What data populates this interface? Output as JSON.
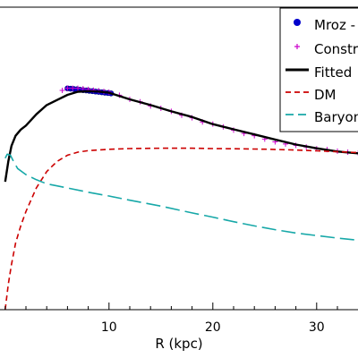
{
  "chart_data": {
    "type": "line",
    "xlabel": "R (kpc)",
    "ylabel": "",
    "xlim": [
      0,
      36
    ],
    "ylim": [
      0,
      290
    ],
    "x_ticks": [
      10,
      20,
      30
    ],
    "grid": false,
    "legend_placement": "top-right",
    "legend_entries": [
      {
        "label": "Mroz -",
        "marker": "circle",
        "color": "#0000cc"
      },
      {
        "label": "Constr",
        "marker": "plus",
        "color": "#cc00cc"
      },
      {
        "label": "Fitted",
        "marker": "line-solid",
        "color": "#000000"
      },
      {
        "label": "DM",
        "marker": "line-dashed",
        "color": "#cc0000"
      },
      {
        "label": "Baryon",
        "marker": "line-dashed",
        "color": "#17a8a8"
      }
    ],
    "series": [
      {
        "name": "Mroz -",
        "kind": "points",
        "color": "#0000cc",
        "x": [
          6.0,
          6.3,
          6.6,
          6.9,
          7.2,
          7.5,
          7.8,
          8.1,
          8.4,
          8.7,
          9.0,
          9.3,
          9.6,
          9.9,
          10.2
        ],
        "y": [
          216.3,
          216.0,
          215.7,
          215.4,
          215.0,
          214.6,
          214.3,
          213.9,
          213.6,
          213.2,
          212.9,
          212.5,
          212.1,
          211.8,
          211.4
        ]
      },
      {
        "name": "Constr",
        "kind": "plus",
        "color": "#cc00cc",
        "x": [
          5.5,
          6.0,
          6.5,
          7.0,
          7.5,
          8.0,
          8.5,
          9.0,
          9.5,
          10.0,
          11.0,
          12.0,
          13.0,
          14.0,
          15.0,
          16.0,
          17.0,
          18.0,
          19.0,
          20.0,
          21.0,
          22.0,
          23.0,
          24.0,
          25.0,
          26.0,
          27.0,
          28.0,
          29.0,
          30.0,
          31.0,
          32.0,
          33.0,
          34.0,
          35.0,
          36.0
        ],
        "y": [
          214.3,
          216.5,
          216.4,
          216.4,
          216.0,
          215.3,
          214.6,
          214.0,
          213.4,
          212.6,
          209.7,
          205.6,
          203.2,
          199.2,
          196.8,
          193.9,
          190.1,
          187.6,
          183.5,
          181.4,
          178.7,
          175.5,
          172.2,
          170.1,
          166.8,
          164.0,
          162.0,
          160.7,
          159.0,
          157.3,
          156.5,
          155.0,
          154.0,
          153.1,
          152.7,
          152.3
        ]
      },
      {
        "name": "Fitted",
        "kind": "line",
        "color": "#000000",
        "dash": "",
        "x": [
          0,
          0.3,
          0.6,
          1.0,
          1.5,
          2.0,
          3.0,
          4.0,
          5.0,
          6.0,
          7.0,
          8.0,
          9.0,
          10.0,
          12.0,
          14.0,
          16.0,
          18.0,
          20.0,
          22.0,
          24.0,
          26.0,
          28.0,
          30.0,
          32.0,
          34.0,
          36.0
        ],
        "y": [
          125,
          145,
          160,
          170,
          176,
          180,
          191,
          200,
          205,
          210,
          213,
          213.6,
          213.2,
          212.1,
          205.6,
          200.0,
          193.9,
          188.4,
          181.4,
          176.3,
          171.3,
          166.3,
          161.4,
          157.7,
          154.6,
          152.8,
          152.0
        ]
      },
      {
        "name": "DM",
        "kind": "line",
        "color": "#cc0000",
        "dash": "6,4",
        "x": [
          0,
          0.3,
          0.6,
          1.0,
          1.5,
          2.0,
          3.0,
          4.0,
          5.0,
          6.0,
          7.0,
          8.0,
          10.0,
          12.0,
          15.0,
          18.0,
          20.0,
          22.0,
          25.0,
          28.0,
          30.0,
          33.0,
          36.0
        ],
        "y": [
          0,
          25,
          44,
          65,
          82,
          96,
          119,
          135,
          145,
          151,
          154,
          155.5,
          156.8,
          157.5,
          157.8,
          157.8,
          157.5,
          157.3,
          156.9,
          156.1,
          155.3,
          154.0,
          152.7
        ]
      },
      {
        "name": "Baryon",
        "kind": "line",
        "color": "#17a8a8",
        "dash": "16,6",
        "x": [
          0,
          0.2,
          0.5,
          0.8,
          1.2,
          2.0,
          3.0,
          4.0,
          5.0,
          6.0,
          8.0,
          10.0,
          12.0,
          15.0,
          18.0,
          20.0,
          22.0,
          24.0,
          26.0,
          28.0,
          30.0,
          32.0,
          34.0,
          36.0
        ],
        "y": [
          148,
          152,
          151,
          145,
          138,
          132,
          127,
          123,
          121,
          119,
          114.8,
          111.1,
          107.0,
          101.2,
          94.6,
          90.5,
          86.0,
          81.9,
          78.2,
          74.9,
          72.4,
          70.0,
          67.9,
          66.2
        ]
      }
    ]
  }
}
